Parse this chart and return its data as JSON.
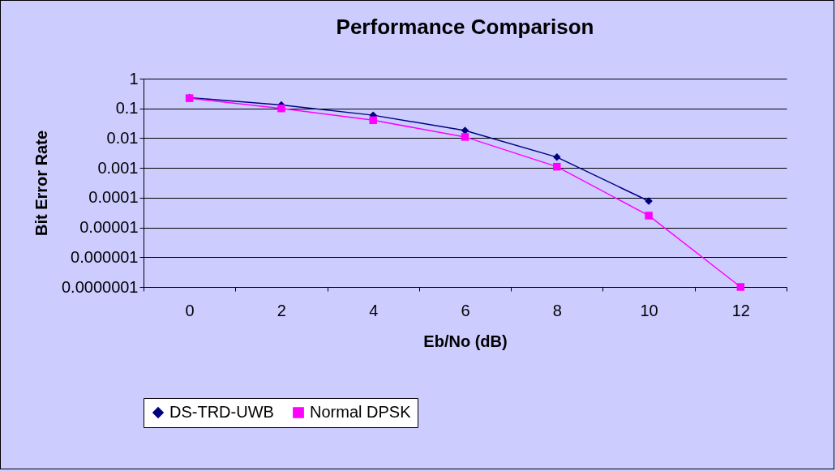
{
  "chart_data": {
    "type": "line",
    "title": "Performance Comparison",
    "xlabel": "Eb/No (dB)",
    "ylabel": "Bit Error Rate",
    "categories": [
      "0",
      "2",
      "4",
      "6",
      "8",
      "10",
      "12"
    ],
    "series": [
      {
        "name": "DS-TRD-UWB",
        "color": "#000080",
        "marker": "diamond",
        "values": [
          0.23,
          0.13,
          0.059,
          0.018,
          0.0023,
          7.7e-05,
          null
        ]
      },
      {
        "name": "Normal DPSK",
        "color": "#ff00ff",
        "marker": "square",
        "values": [
          0.22,
          0.1,
          0.04,
          0.011,
          0.0011,
          2.5e-05,
          1e-07
        ]
      }
    ],
    "log": "y",
    "ylim": [
      1e-07,
      1
    ],
    "yticks": [
      {
        "value": 1e-07,
        "label": "0.0000001"
      },
      {
        "value": 1e-06,
        "label": "0.000001"
      },
      {
        "value": 1e-05,
        "label": "0.00001"
      },
      0.0001,
      0.001,
      0.01,
      0.1,
      1
    ],
    "grid": "y",
    "legend": "bottom",
    "line_style": "solid"
  }
}
